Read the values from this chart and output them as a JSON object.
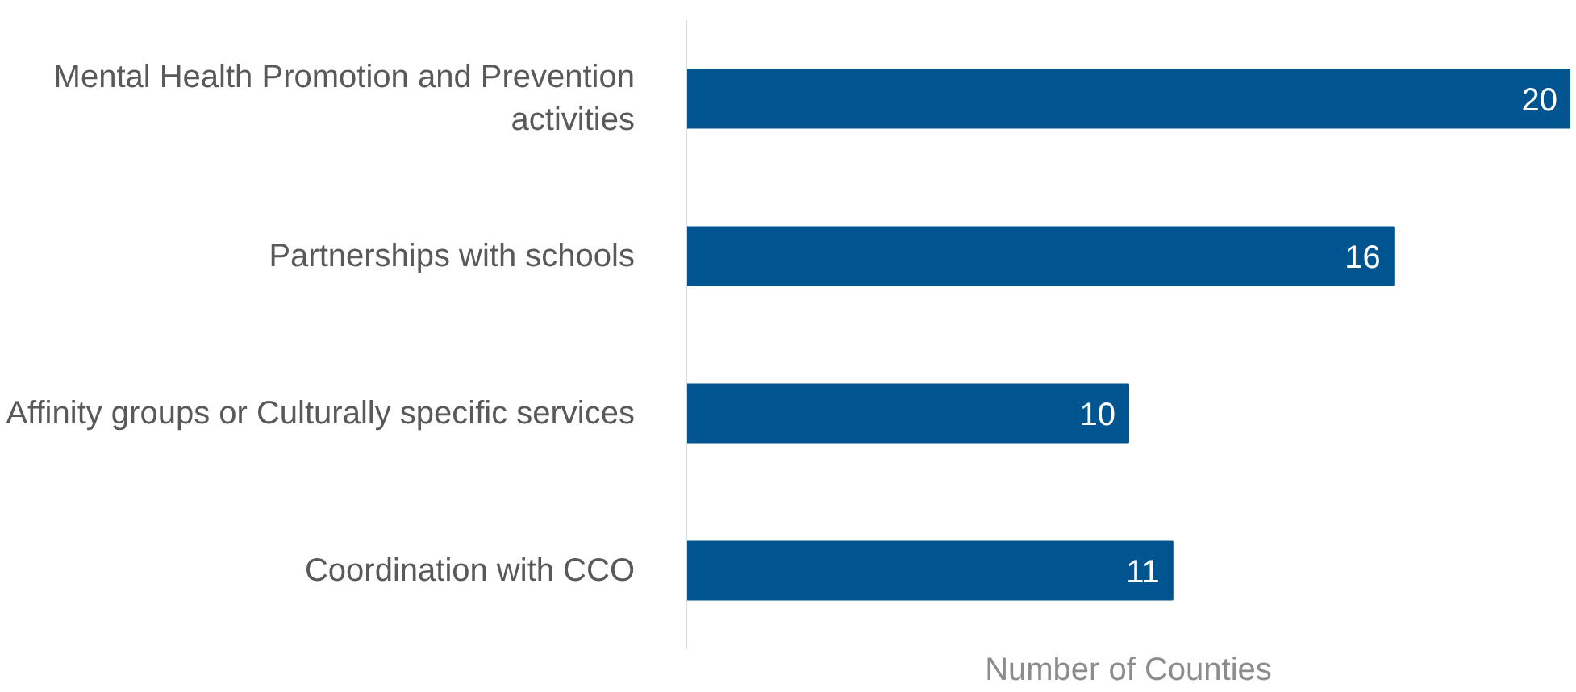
{
  "chart_data": {
    "type": "bar",
    "orientation": "horizontal",
    "xlabel": "Number of Counties",
    "categories": [
      "Mental Health Promotion and Prevention activities",
      "Partnerships with schools",
      "Affinity groups or Culturally specific services",
      "Coordination with CCO"
    ],
    "values": [
      20,
      16,
      10,
      11
    ],
    "color": "#00548f",
    "data_labels": true
  }
}
